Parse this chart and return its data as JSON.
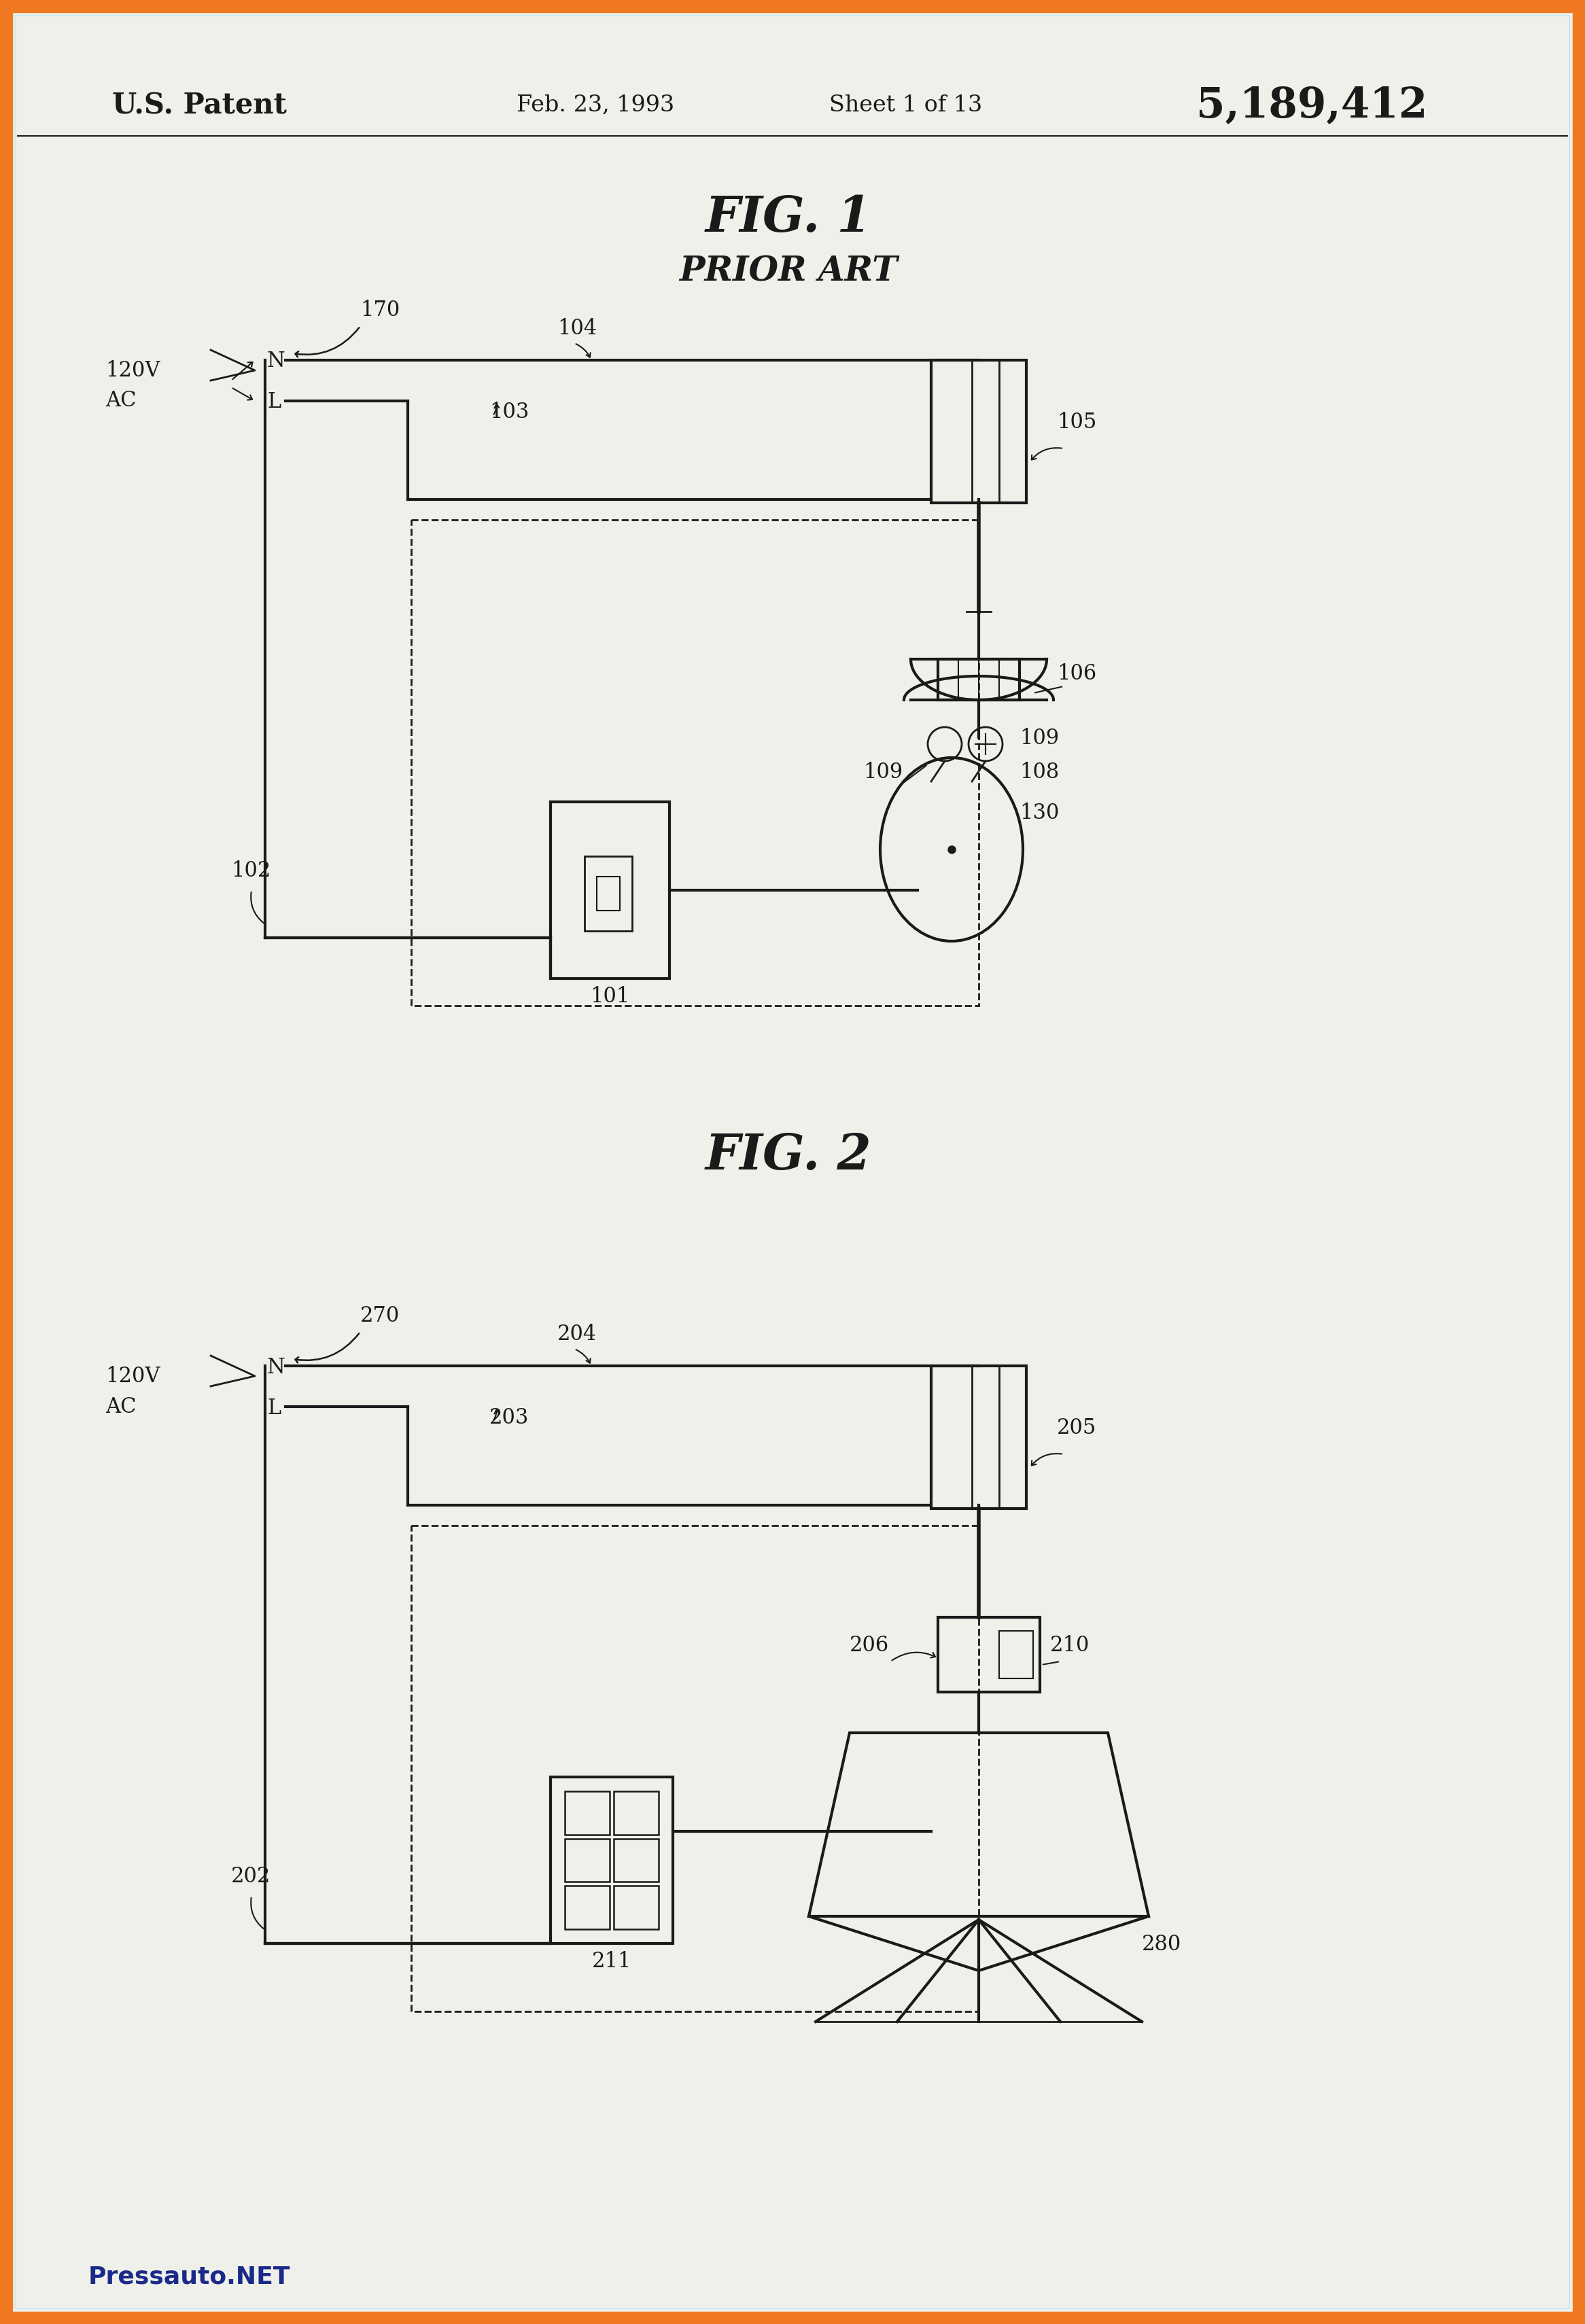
{
  "bg_color": "#f0f0eb",
  "border_color": "#f07820",
  "border_width": 18,
  "inner_border_color": "#c8e8f0",
  "header_text_left": "U.S. Patent",
  "header_text_mid": "Feb. 23, 1993",
  "header_text_sheet": "Sheet 1 of 13",
  "header_text_right": "5,189,412",
  "footer_text": "Pressauto.NET",
  "fig1_title": "FIG. 1",
  "fig1_subtitle": "PRIOR ART",
  "fig2_title": "FIG. 2",
  "line_color": "#1a1a1a",
  "dashed_color": "#1a1a1a",
  "footer_color": "#1a2a8a"
}
